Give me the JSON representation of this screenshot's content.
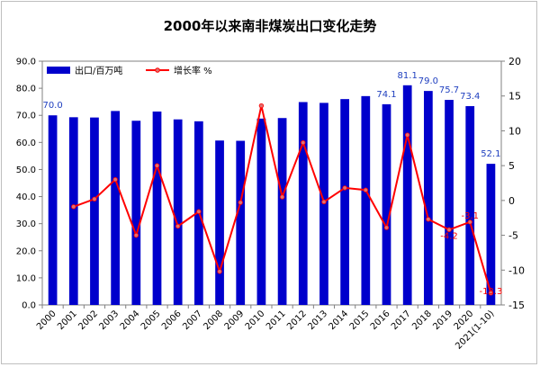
{
  "chart_data": {
    "type": "bar+line",
    "title": "2000年以来南非煤炭出口变化走势",
    "categories": [
      "2000",
      "2001",
      "2002",
      "2003",
      "2004",
      "2005",
      "2006",
      "2007",
      "2008",
      "2009",
      "2010",
      "2011",
      "2012",
      "2013",
      "2014",
      "2015",
      "2016",
      "2017",
      "2018",
      "2019",
      "2020",
      "2021(1-10)"
    ],
    "series": [
      {
        "name": "出口/百万吨",
        "type": "bar",
        "axis": "left",
        "color": "#0000cc",
        "values": [
          70.0,
          69.3,
          69.2,
          71.6,
          68.0,
          71.4,
          68.5,
          67.8,
          60.7,
          60.6,
          68.8,
          69.0,
          74.9,
          74.6,
          76.0,
          77.1,
          74.1,
          81.1,
          79.0,
          75.7,
          73.4,
          52.1
        ]
      },
      {
        "name": "增长率 %",
        "type": "line",
        "axis": "right",
        "color": "#ff0000",
        "values": [
          null,
          -0.9,
          0.2,
          3.0,
          -5.0,
          5.0,
          -3.7,
          -1.6,
          -10.2,
          -0.3,
          13.6,
          0.5,
          8.3,
          -0.2,
          1.8,
          1.5,
          -3.9,
          9.4,
          -2.7,
          -4.2,
          -3.1,
          -13.3
        ]
      }
    ],
    "data_labels": {
      "bar": [
        {
          "index": 0,
          "text": "70.0"
        },
        {
          "index": 16,
          "text": "74.1"
        },
        {
          "index": 17,
          "text": "81.1"
        },
        {
          "index": 18,
          "text": "79.0"
        },
        {
          "index": 19,
          "text": "75.7"
        },
        {
          "index": 20,
          "text": "73.4"
        },
        {
          "index": 21,
          "text": "52.1"
        }
      ],
      "line": [
        {
          "index": 19,
          "text": "-4.2"
        },
        {
          "index": 20,
          "text": "-3.1"
        },
        {
          "index": 21,
          "text": "-13.3"
        }
      ]
    },
    "y_left": {
      "min": 0,
      "max": 90,
      "step": 10,
      "decimals": 1
    },
    "y_right": {
      "min": -15,
      "max": 20,
      "step": 5
    },
    "legend_position": "top-left",
    "grid": false
  }
}
